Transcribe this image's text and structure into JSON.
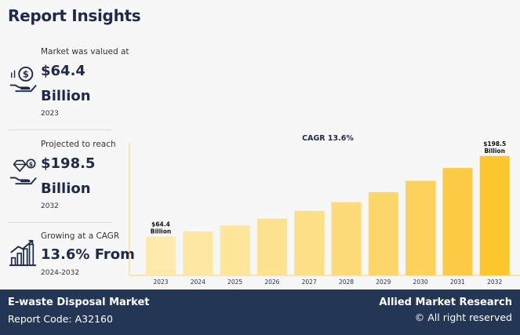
{
  "title": "Report Insights",
  "stats": [
    {
      "caption": "Market was valued at",
      "value_line1": "$64.4",
      "value_line2": "Billion",
      "sub": "2023",
      "icon": "money-hand-icon"
    },
    {
      "caption": "Projected to reach",
      "value_line1": "$198.5",
      "value_line2": "Billion",
      "sub": "2032",
      "icon": "diamond-hand-icon"
    },
    {
      "caption": "Growing at a CAGR",
      "value_line1": "13.6% From",
      "sub": "2024-2032",
      "icon": "growth-chart-icon"
    }
  ],
  "chart_data": {
    "type": "bar",
    "title": "CAGR 13.6%",
    "categories": [
      "2023",
      "2024",
      "2025",
      "2026",
      "2027",
      "2028",
      "2029",
      "2030",
      "2031",
      "2032"
    ],
    "values": [
      64.4,
      73.2,
      83.1,
      94.4,
      107.2,
      121.8,
      138.4,
      157.2,
      178.6,
      198.5
    ],
    "unit": "Billion",
    "data_labels": [
      {
        "index": 0,
        "line1": "$64.4",
        "line2": "Billion"
      },
      {
        "index": 9,
        "line1": "$198.5",
        "line2": "Billion"
      }
    ],
    "colors": [
      "#fde9a9",
      "#fde8a2",
      "#fde59a",
      "#fde290",
      "#fddf85",
      "#fddb78",
      "#fdd66a",
      "#fdd15a",
      "#fdca45",
      "#fdc62c"
    ],
    "ylim": [
      0,
      210
    ],
    "grid": false,
    "legend": "none"
  },
  "footer": {
    "market": "E-waste Disposal Market",
    "report_code": "Report Code: A32160",
    "brand": "Allied Market Research",
    "rights": "© All right reserved"
  }
}
